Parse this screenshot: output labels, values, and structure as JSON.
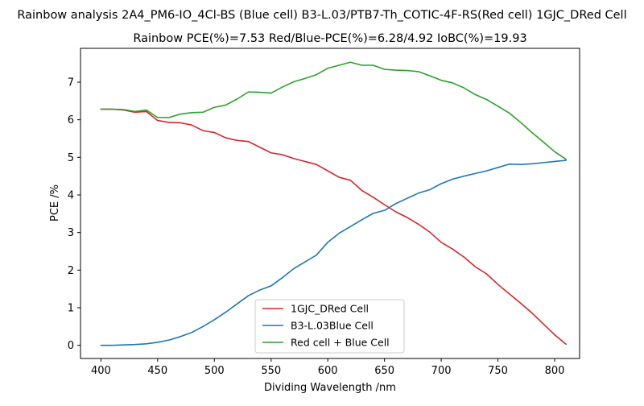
{
  "chart_data": {
    "type": "line",
    "title": "Rainbow analysis 2A4_PM6-IO_4Cl-BS (Blue cell) B3-L.03/PTB7-Th_COTIC-4F-RS(Red cell) 1GJC_DRed Cell",
    "subtitle": "Rainbow PCE(%)=7.53  Red/Blue-PCE(%)=6.28/4.92   IoBC(%)=19.93",
    "xlabel": "Dividing Wavelength /nm",
    "ylabel": "PCE /%",
    "xlim": [
      382,
      822
    ],
    "ylim": [
      -0.35,
      7.9
    ],
    "xticks": [
      400,
      450,
      500,
      550,
      600,
      650,
      700,
      750,
      800
    ],
    "yticks": [
      0,
      1,
      2,
      3,
      4,
      5,
      6,
      7
    ],
    "grid": false,
    "legend_position": "bottom-center",
    "x": [
      400,
      410,
      420,
      430,
      440,
      450,
      460,
      470,
      480,
      490,
      500,
      510,
      520,
      530,
      540,
      550,
      560,
      570,
      580,
      590,
      600,
      610,
      620,
      630,
      640,
      650,
      660,
      670,
      680,
      690,
      700,
      710,
      720,
      730,
      740,
      750,
      760,
      770,
      780,
      790,
      800,
      810
    ],
    "series": [
      {
        "name": "1GJC_DRed Cell",
        "color": "#d62728",
        "values": [
          6.28,
          6.28,
          6.26,
          6.2,
          6.22,
          5.98,
          5.93,
          5.92,
          5.86,
          5.71,
          5.66,
          5.52,
          5.45,
          5.42,
          5.27,
          5.12,
          5.07,
          4.97,
          4.89,
          4.81,
          4.64,
          4.47,
          4.39,
          4.12,
          3.94,
          3.74,
          3.55,
          3.4,
          3.22,
          3.01,
          2.74,
          2.56,
          2.35,
          2.09,
          1.9,
          1.62,
          1.37,
          1.12,
          0.86,
          0.57,
          0.28,
          0.03
        ]
      },
      {
        "name": "B3-L.03Blue Cell",
        "color": "#1f77b4",
        "values": [
          0.0,
          0.0,
          0.01,
          0.02,
          0.04,
          0.08,
          0.14,
          0.23,
          0.34,
          0.5,
          0.68,
          0.88,
          1.1,
          1.32,
          1.47,
          1.58,
          1.8,
          2.04,
          2.22,
          2.4,
          2.74,
          2.98,
          3.16,
          3.34,
          3.51,
          3.59,
          3.77,
          3.91,
          4.05,
          4.14,
          4.3,
          4.42,
          4.5,
          4.57,
          4.64,
          4.73,
          4.82,
          4.81,
          4.83,
          4.86,
          4.89,
          4.92
        ]
      },
      {
        "name": "Red cell + Blue Cell",
        "color": "#2ca02c",
        "values": [
          6.28,
          6.28,
          6.27,
          6.22,
          6.26,
          6.06,
          6.06,
          6.15,
          6.19,
          6.2,
          6.33,
          6.39,
          6.55,
          6.74,
          6.73,
          6.71,
          6.87,
          7.01,
          7.1,
          7.2,
          7.37,
          7.45,
          7.53,
          7.45,
          7.45,
          7.34,
          7.32,
          7.31,
          7.28,
          7.17,
          7.05,
          6.98,
          6.85,
          6.67,
          6.54,
          6.36,
          6.18,
          5.93,
          5.66,
          5.41,
          5.15,
          4.95
        ]
      }
    ]
  }
}
